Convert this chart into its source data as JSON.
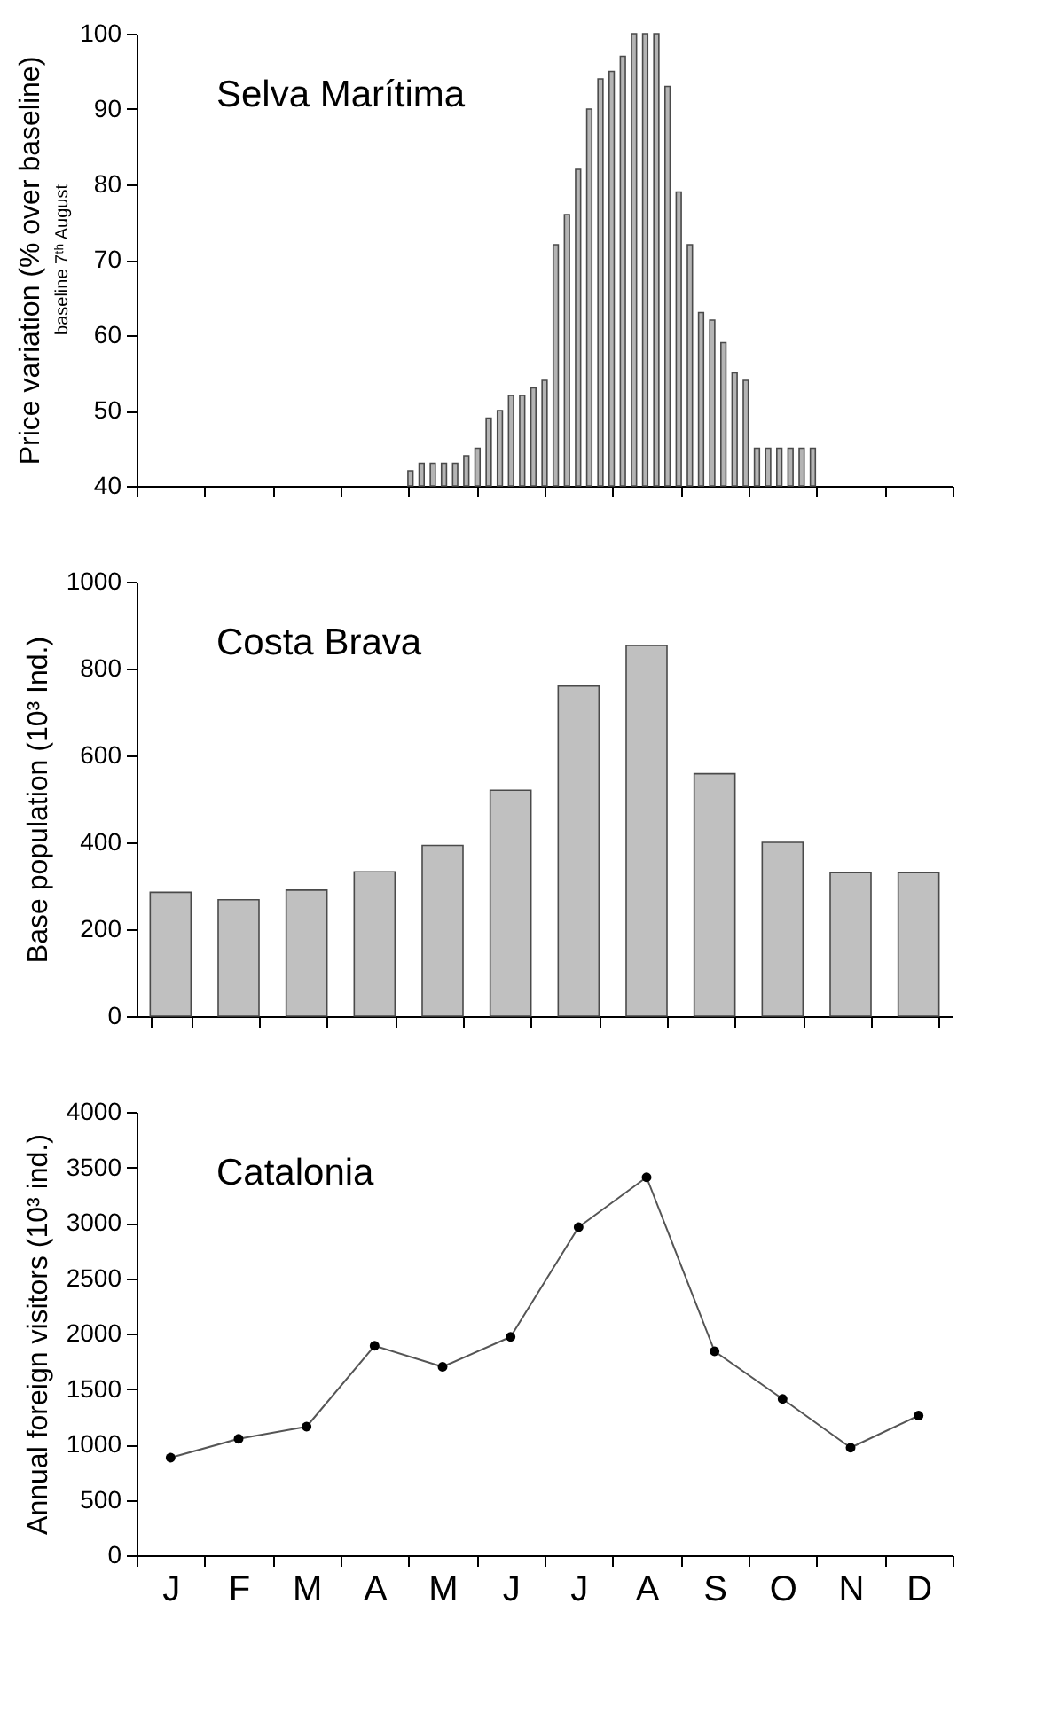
{
  "chart_data": [
    {
      "type": "bar",
      "title": "Selva Marítima",
      "ylabel": "Price variation (% over baseline)",
      "annotations": [
        "baseline 7ᵗʰ August"
      ],
      "categories": [
        null,
        null,
        null,
        null,
        null,
        null,
        null,
        null,
        null,
        null,
        null,
        null,
        null,
        null,
        null,
        null,
        null,
        null,
        null,
        null,
        null,
        null,
        null,
        null,
        null,
        null,
        null,
        null,
        null,
        null,
        null,
        null,
        null,
        null,
        null,
        null,
        null,
        null,
        null,
        null,
        null,
        null,
        null,
        null,
        null,
        null,
        null,
        null,
        null,
        null,
        null,
        null,
        null,
        null,
        null,
        null,
        null,
        null,
        null,
        null,
        null,
        null,
        null,
        null,
        null,
        null,
        null,
        null,
        null,
        null,
        null,
        null,
        null
      ],
      "values": [
        null,
        null,
        null,
        null,
        null,
        null,
        null,
        null,
        null,
        null,
        null,
        null,
        null,
        null,
        null,
        null,
        null,
        null,
        null,
        null,
        null,
        null,
        null,
        null,
        42,
        43,
        43,
        43,
        43,
        44,
        45,
        49,
        50,
        52,
        52,
        53,
        54,
        72,
        76,
        82,
        90,
        94,
        95,
        97,
        100,
        100,
        100,
        93,
        79,
        72,
        63,
        62,
        59,
        55,
        54,
        45,
        45,
        45,
        45,
        45,
        45,
        null,
        null,
        null,
        null,
        null,
        null,
        null,
        null,
        null,
        null,
        null,
        null
      ],
      "color": "#b4b4b4",
      "ylim": [
        40,
        100
      ],
      "yticks": [
        40,
        50,
        60,
        70,
        80,
        90,
        100
      ],
      "tick_labels": "y"
    },
    {
      "type": "bar",
      "title": "Costa Brava",
      "ylabel": "Base population (10³ Ind.)",
      "categories": [
        null,
        null,
        null,
        null,
        null,
        null,
        null,
        null,
        null,
        null,
        null,
        null
      ],
      "values": [
        285,
        268,
        290,
        332,
        393,
        520,
        760,
        853,
        558,
        400,
        330,
        330
      ],
      "color": "#c0c0c0",
      "ylim": [
        0,
        1000
      ],
      "yticks": [
        0,
        200,
        400,
        600,
        800,
        1000
      ],
      "tick_labels": "y"
    },
    {
      "type": "line",
      "title": "Catalonia",
      "ylabel": "Annual foreign visitors (10³ ind.)",
      "categories": [
        "J",
        "F",
        "M",
        "A",
        "M",
        "J",
        "J",
        "A",
        "S",
        "O",
        "N",
        "D"
      ],
      "values": [
        880,
        1050,
        1160,
        1890,
        1700,
        1970,
        2960,
        3410,
        1840,
        1410,
        970,
        1260
      ],
      "color": "#555555",
      "marker": "circle",
      "ylim": [
        0,
        4000
      ],
      "yticks": [
        0,
        500,
        1000,
        1500,
        2000,
        2500,
        3000,
        3500,
        4000
      ]
    }
  ]
}
